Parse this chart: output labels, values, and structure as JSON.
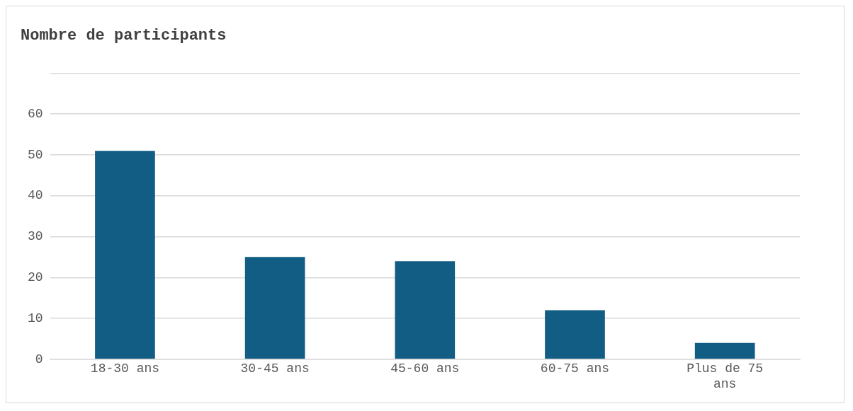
{
  "chart_data": {
    "type": "bar",
    "title": "Nombre de participants",
    "categories": [
      "18-30 ans",
      "30-45 ans",
      "45-60 ans",
      "60-75 ans",
      "Plus de 75 ans"
    ],
    "values": [
      51,
      25,
      24,
      12,
      4
    ],
    "color": "#115d84",
    "ylim": [
      0,
      70
    ],
    "yticks": [
      0,
      10,
      20,
      30,
      40,
      50,
      60,
      {
        "value": 70,
        "label": null
      }
    ],
    "grid": "y",
    "legend": false
  }
}
